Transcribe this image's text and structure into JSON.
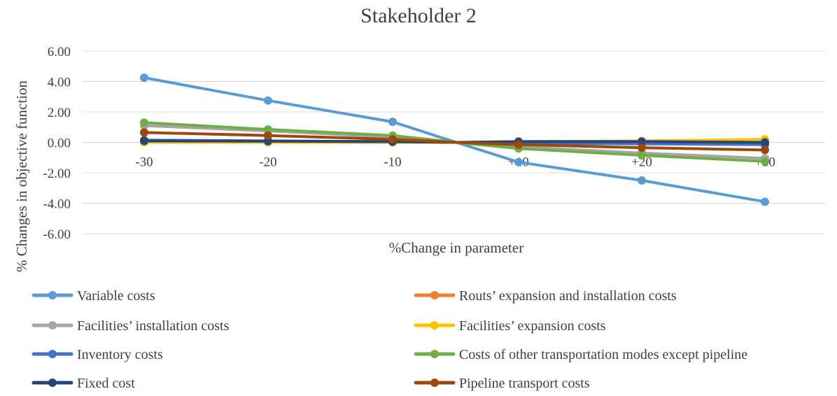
{
  "chart_data": {
    "type": "line",
    "title": "Stakeholder 2",
    "xlabel": "%Change in parameter",
    "ylabel": "% Changes in objective function",
    "ylim": [
      -6,
      6
    ],
    "y_ticks": [
      6,
      4,
      2,
      0,
      -2,
      -4,
      -6
    ],
    "y_tick_labels": [
      "6.00",
      "4.00",
      "2.00",
      "0.00",
      "-2.00",
      "-4.00",
      "-6.00"
    ],
    "categories": [
      "-30",
      "-20",
      "-10",
      "+10",
      "+20",
      "+30"
    ],
    "legend_position": "bottom",
    "series": [
      {
        "name": "Variable costs",
        "color": "#5b9bd5",
        "values": [
          4.25,
          2.75,
          1.35,
          -1.3,
          -2.5,
          -3.9
        ]
      },
      {
        "name": "Routs’ expansion and installation costs",
        "color": "#ed7d31",
        "values": [
          0.05,
          0.03,
          0.02,
          -0.02,
          -0.03,
          -0.05
        ]
      },
      {
        "name": "Facilities’ installation costs",
        "color": "#a5a5a5",
        "values": [
          1.1,
          0.75,
          0.35,
          -0.3,
          -0.7,
          -1.05
        ]
      },
      {
        "name": "Facilities’ expansion costs",
        "color": "#ffc000",
        "values": [
          0.0,
          0.0,
          0.0,
          0.05,
          0.1,
          0.2
        ]
      },
      {
        "name": "Inventory costs",
        "color": "#4472c4",
        "values": [
          0.15,
          0.1,
          0.05,
          -0.05,
          -0.1,
          -0.15
        ]
      },
      {
        "name": "Costs of other transportation modes except pipeline",
        "color": "#70ad47",
        "values": [
          1.3,
          0.85,
          0.45,
          -0.4,
          -0.85,
          -1.25
        ]
      },
      {
        "name": "Fixed cost",
        "color": "#264478",
        "values": [
          0.1,
          0.08,
          0.05,
          0.05,
          0.05,
          0.0
        ]
      },
      {
        "name": "Pipeline transport costs",
        "color": "#9e480e",
        "values": [
          0.65,
          0.45,
          0.2,
          -0.15,
          -0.35,
          -0.5
        ]
      }
    ]
  }
}
